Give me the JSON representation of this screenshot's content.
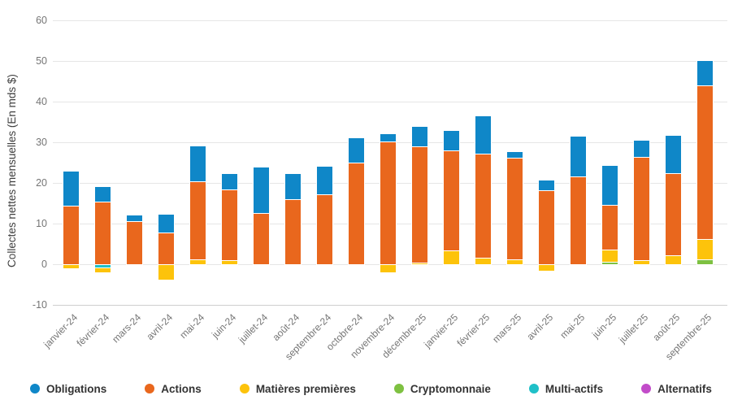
{
  "chart_data": {
    "type": "bar",
    "stacked": true,
    "title": "",
    "xlabel": "",
    "ylabel": "Collectes nettes mensuelles (En mds $)",
    "ylim": [
      -10,
      60
    ],
    "y_ticks": [
      60,
      50,
      40,
      30,
      20,
      10,
      0,
      -10
    ],
    "grid": true,
    "legend_position": "bottom",
    "units": "mds $",
    "categories": [
      "janvier-24",
      "février-24",
      "mars-24",
      "avril-24",
      "mai-24",
      "juin-24",
      "juillet-24",
      "août-24",
      "septembre-24",
      "octobre-24",
      "novembre-24",
      "décembre-25",
      "janvier-25",
      "février-25",
      "mars-25",
      "avril-25",
      "mai-25",
      "juin-25",
      "juillet-25",
      "août-25",
      "septembre-25"
    ],
    "stack_order_bottom_to_top": [
      "Alternatifs",
      "Multi-actifs",
      "Cryptomonnaie",
      "Matières premières",
      "Actions",
      "Obligations"
    ],
    "series": [
      {
        "name": "Obligations",
        "color": "#0f87c8",
        "values": [
          8.4,
          3.6,
          1.4,
          4.5,
          8.7,
          3.8,
          11.2,
          6.2,
          6.7,
          6.0,
          1.8,
          4.8,
          4.9,
          9.3,
          1.4,
          2.4,
          9.8,
          9.5,
          4.1,
          9.1,
          6.0
        ]
      },
      {
        "name": "Actions",
        "color": "#e9671d",
        "values": [
          14.4,
          15.5,
          10.6,
          7.8,
          19.2,
          17.3,
          12.6,
          16.1,
          17.3,
          25.0,
          30.3,
          28.6,
          24.5,
          25.5,
          25.0,
          18.3,
          21.7,
          11.1,
          25.3,
          20.2,
          37.7
        ]
      },
      {
        "name": "Matières premières",
        "color": "#fdc30b",
        "values": [
          -0.9,
          -1.1,
          0,
          -3.8,
          1.2,
          1.1,
          0,
          0,
          0,
          0,
          -1.9,
          0.4,
          3.5,
          1.7,
          1.2,
          -1.6,
          0,
          3.0,
          1.1,
          2.3,
          5.0
        ]
      },
      {
        "name": "Cryptomonnaie",
        "color": "#7ec141",
        "values": [
          0,
          0,
          0,
          0,
          0,
          0,
          0,
          0,
          0,
          0,
          0,
          0,
          0,
          0,
          0,
          0,
          0,
          0.6,
          0,
          0,
          1.3
        ]
      },
      {
        "name": "Multi-actifs",
        "color": "#1fc0c8",
        "values": [
          0,
          -0.9,
          0,
          0,
          0,
          0,
          0,
          0,
          0,
          0,
          0,
          0,
          0,
          0,
          0,
          0,
          0,
          0,
          0,
          0,
          0
        ]
      },
      {
        "name": "Alternatifs",
        "color": "#c24cc9",
        "values": [
          0,
          0,
          0,
          0,
          0,
          0,
          0,
          0,
          0,
          0,
          0,
          0,
          0,
          0,
          0,
          0,
          0,
          0,
          0,
          0,
          0
        ]
      }
    ]
  }
}
